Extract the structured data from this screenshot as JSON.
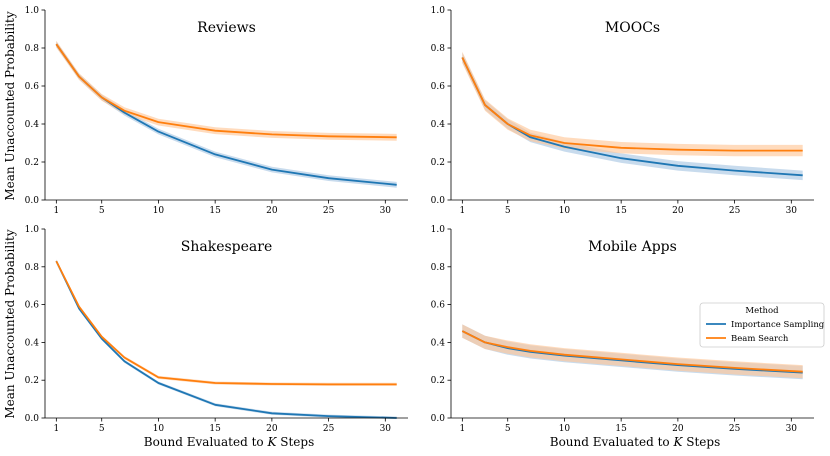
{
  "figure": {
    "ylabel": "Mean Unaccounted Probability",
    "xlabel_prefix": "Bound Evaluated to ",
    "xlabel_var": "K",
    "xlabel_suffix": " Steps"
  },
  "legend": {
    "title": "Method",
    "entries": [
      {
        "label": "Importance Sampling",
        "color": "#1f77b4"
      },
      {
        "label": "Beam Search",
        "color": "#ff7f0e"
      }
    ]
  },
  "colors": {
    "importance_sampling": "#1f77b4",
    "beam_search": "#ff7f0e",
    "is_band": "#aac8e3",
    "bs_band": "#ffc899"
  },
  "chart_data": [
    {
      "type": "line",
      "title": "Reviews",
      "xlim": [
        0,
        32
      ],
      "ylim": [
        0,
        1.0
      ],
      "xticks": [
        1,
        5,
        10,
        15,
        20,
        25,
        30
      ],
      "yticks": [
        0.0,
        0.2,
        0.4,
        0.6,
        0.8,
        1.0
      ],
      "grid": false,
      "x": [
        1,
        3,
        5,
        7,
        10,
        15,
        20,
        25,
        31
      ],
      "series": [
        {
          "name": "Importance Sampling",
          "values": [
            0.82,
            0.65,
            0.54,
            0.46,
            0.36,
            0.24,
            0.16,
            0.115,
            0.08
          ],
          "band": 0.015
        },
        {
          "name": "Beam Search",
          "values": [
            0.82,
            0.65,
            0.54,
            0.47,
            0.41,
            0.365,
            0.345,
            0.335,
            0.33
          ],
          "band": 0.018
        }
      ]
    },
    {
      "type": "line",
      "title": "MOOCs",
      "xlim": [
        0,
        32
      ],
      "ylim": [
        0,
        1.0
      ],
      "xticks": [
        1,
        5,
        10,
        15,
        20,
        25,
        30
      ],
      "yticks": [
        0.0,
        0.2,
        0.4,
        0.6,
        0.8,
        1.0
      ],
      "grid": false,
      "x": [
        1,
        3,
        5,
        7,
        10,
        15,
        20,
        25,
        31
      ],
      "series": [
        {
          "name": "Importance Sampling",
          "values": [
            0.75,
            0.5,
            0.4,
            0.33,
            0.28,
            0.22,
            0.18,
            0.155,
            0.13
          ],
          "band": 0.025
        },
        {
          "name": "Beam Search",
          "values": [
            0.75,
            0.5,
            0.4,
            0.34,
            0.3,
            0.275,
            0.265,
            0.26,
            0.26
          ],
          "band": 0.03
        }
      ]
    },
    {
      "type": "line",
      "title": "Shakespeare",
      "xlim": [
        0,
        32
      ],
      "ylim": [
        0,
        1.0
      ],
      "xticks": [
        1,
        5,
        10,
        15,
        20,
        25,
        30
      ],
      "yticks": [
        0.0,
        0.2,
        0.4,
        0.6,
        0.8,
        1.0
      ],
      "grid": false,
      "x": [
        1,
        3,
        5,
        7,
        10,
        15,
        20,
        25,
        31
      ],
      "series": [
        {
          "name": "Importance Sampling",
          "values": [
            0.83,
            0.58,
            0.42,
            0.3,
            0.185,
            0.07,
            0.025,
            0.01,
            0.0
          ],
          "band": 0.008
        },
        {
          "name": "Beam Search",
          "values": [
            0.83,
            0.59,
            0.43,
            0.32,
            0.215,
            0.185,
            0.18,
            0.178,
            0.178
          ],
          "band": 0.008
        }
      ]
    },
    {
      "type": "line",
      "title": "Mobile Apps",
      "xlim": [
        0,
        32
      ],
      "ylim": [
        0,
        1.0
      ],
      "xticks": [
        1,
        5,
        10,
        15,
        20,
        25,
        30
      ],
      "yticks": [
        0.0,
        0.2,
        0.4,
        0.6,
        0.8,
        1.0
      ],
      "grid": false,
      "x": [
        1,
        3,
        5,
        7,
        10,
        15,
        20,
        25,
        31
      ],
      "series": [
        {
          "name": "Importance Sampling",
          "values": [
            0.46,
            0.4,
            0.37,
            0.35,
            0.33,
            0.305,
            0.28,
            0.26,
            0.24
          ],
          "band": 0.035
        },
        {
          "name": "Beam Search",
          "values": [
            0.46,
            0.4,
            0.375,
            0.355,
            0.335,
            0.31,
            0.285,
            0.265,
            0.245
          ],
          "band": 0.035
        }
      ]
    }
  ]
}
